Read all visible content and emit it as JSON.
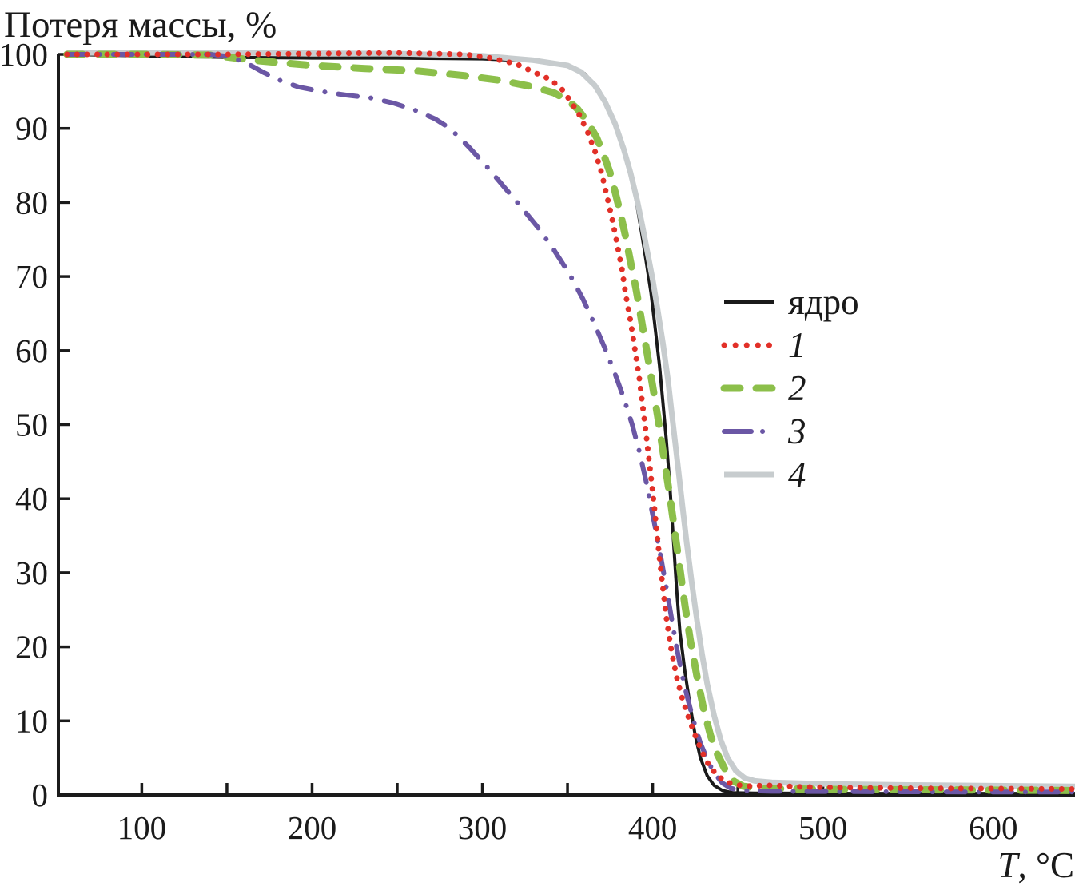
{
  "title": "Потеря массы, %",
  "x_axis_label": {
    "symbol": "T",
    "unit": ", °C"
  },
  "chart_data": {
    "type": "line",
    "title": "Потеря массы, %",
    "xlabel": "T, °C",
    "ylabel": "Потеря массы, %",
    "xlim": [
      51,
      648
    ],
    "ylim": [
      0,
      100
    ],
    "grid": false,
    "axis_color": "#1b1b1b",
    "legend_position": "inside-right-middle",
    "x_major_ticks": [
      100,
      200,
      300,
      400,
      500,
      600
    ],
    "x_minor_ticks": [
      150,
      250,
      350,
      450,
      550
    ],
    "y_ticks": [
      0,
      10,
      20,
      30,
      40,
      50,
      60,
      70,
      80,
      90,
      100
    ],
    "series": [
      {
        "name": "ядро",
        "color": "#1a1a1a",
        "line_style": "solid",
        "line_width": 4,
        "points": [
          [
            56,
            100
          ],
          [
            100,
            99.8
          ],
          [
            150,
            99.6
          ],
          [
            200,
            99.5
          ],
          [
            250,
            99.5
          ],
          [
            300,
            99.4
          ],
          [
            330,
            99.1
          ],
          [
            350,
            98.4
          ],
          [
            360,
            97.4
          ],
          [
            368,
            95.4
          ],
          [
            375,
            92.4
          ],
          [
            381,
            88.8
          ],
          [
            386,
            84.8
          ],
          [
            390,
            80.6
          ],
          [
            393,
            76.6
          ],
          [
            396,
            72.3
          ],
          [
            399,
            67.8
          ],
          [
            401,
            64
          ],
          [
            404,
            58
          ],
          [
            406,
            53
          ],
          [
            408,
            48
          ],
          [
            410,
            42
          ],
          [
            412,
            35
          ],
          [
            414,
            28
          ],
          [
            416,
            22
          ],
          [
            419,
            16.5
          ],
          [
            422,
            12
          ],
          [
            425,
            8
          ],
          [
            428,
            5
          ],
          [
            432,
            2.6
          ],
          [
            436,
            1.3
          ],
          [
            441,
            0.6
          ],
          [
            447,
            0.3
          ],
          [
            460,
            0.25
          ],
          [
            520,
            0.2
          ],
          [
            600,
            0.2
          ],
          [
            648,
            0.2
          ]
        ]
      },
      {
        "name": "1",
        "color": "#e23028",
        "line_style": "dotted",
        "line_width": 7,
        "points": [
          [
            56,
            100
          ],
          [
            100,
            100
          ],
          [
            150,
            100
          ],
          [
            200,
            100.1
          ],
          [
            250,
            100.2
          ],
          [
            290,
            100
          ],
          [
            305,
            99.5
          ],
          [
            320,
            98.7
          ],
          [
            332,
            97.4
          ],
          [
            340,
            96.6
          ],
          [
            347,
            95.2
          ],
          [
            352,
            93.6
          ],
          [
            357,
            91.8
          ],
          [
            362,
            89.4
          ],
          [
            366,
            87
          ],
          [
            370,
            84
          ],
          [
            373,
            81
          ],
          [
            376,
            78
          ],
          [
            379,
            74.5
          ],
          [
            382,
            71
          ],
          [
            384,
            67.8
          ],
          [
            387,
            64
          ],
          [
            389,
            61
          ],
          [
            392,
            56.5
          ],
          [
            394,
            52.8
          ],
          [
            396,
            49
          ],
          [
            398,
            45
          ],
          [
            400,
            41
          ],
          [
            402,
            36.5
          ],
          [
            404,
            32
          ],
          [
            406,
            28
          ],
          [
            408,
            24
          ],
          [
            411,
            19.5
          ],
          [
            414,
            16
          ],
          [
            417,
            13.3
          ],
          [
            421,
            10.5
          ],
          [
            425,
            8
          ],
          [
            429,
            5.8
          ],
          [
            433,
            4
          ],
          [
            438,
            2.6
          ],
          [
            443,
            1.8
          ],
          [
            448,
            1.4
          ],
          [
            456,
            1.2
          ],
          [
            470,
            1.3
          ],
          [
            485,
            1.1
          ],
          [
            510,
            1
          ],
          [
            560,
            0.9
          ],
          [
            610,
            0.85
          ],
          [
            648,
            0.8
          ]
        ]
      },
      {
        "name": "2",
        "color": "#8cbf4a",
        "line_style": "dashed",
        "line_width": 9,
        "points": [
          [
            56,
            100
          ],
          [
            100,
            100
          ],
          [
            140,
            99.9
          ],
          [
            155,
            99.5
          ],
          [
            170,
            99.1
          ],
          [
            200,
            98.5
          ],
          [
            230,
            98.1
          ],
          [
            260,
            97.8
          ],
          [
            290,
            97.1
          ],
          [
            310,
            96.5
          ],
          [
            330,
            95.6
          ],
          [
            342,
            94.8
          ],
          [
            350,
            93.8
          ],
          [
            356,
            92.6
          ],
          [
            362,
            90.8
          ],
          [
            367,
            88.8
          ],
          [
            371,
            86.6
          ],
          [
            375,
            84
          ],
          [
            378,
            81.4
          ],
          [
            381,
            78.6
          ],
          [
            384,
            75.5
          ],
          [
            387,
            72
          ],
          [
            390,
            68.6
          ],
          [
            392,
            66
          ],
          [
            395,
            62
          ],
          [
            398,
            58
          ],
          [
            400,
            55.2
          ],
          [
            403,
            51
          ],
          [
            405,
            48
          ],
          [
            408,
            43.5
          ],
          [
            410,
            40.5
          ],
          [
            413,
            35.5
          ],
          [
            416,
            30.5
          ],
          [
            419,
            25.5
          ],
          [
            422,
            21
          ],
          [
            426,
            16
          ],
          [
            430,
            11.5
          ],
          [
            434,
            8
          ],
          [
            438,
            5.5
          ],
          [
            443,
            3.2
          ],
          [
            448,
            1.8
          ],
          [
            453,
            1.2
          ],
          [
            462,
            0.9
          ],
          [
            500,
            0.75
          ],
          [
            560,
            0.7
          ],
          [
            610,
            0.65
          ],
          [
            648,
            0.6
          ]
        ]
      },
      {
        "name": "3",
        "color": "#6b57a5",
        "line_style": "dashdot",
        "line_width": 6,
        "points": [
          [
            56,
            100
          ],
          [
            100,
            100
          ],
          [
            140,
            100
          ],
          [
            148,
            99.8
          ],
          [
            156,
            99.3
          ],
          [
            164,
            98.5
          ],
          [
            172,
            97.5
          ],
          [
            182,
            96.4
          ],
          [
            192,
            95.6
          ],
          [
            205,
            95
          ],
          [
            220,
            94.5
          ],
          [
            235,
            94.1
          ],
          [
            248,
            93.4
          ],
          [
            260,
            92.5
          ],
          [
            272,
            91.3
          ],
          [
            281,
            90
          ],
          [
            292,
            87.5
          ],
          [
            302,
            85
          ],
          [
            312,
            82.3
          ],
          [
            322,
            79.6
          ],
          [
            332,
            76.8
          ],
          [
            342,
            73.6
          ],
          [
            351,
            70.4
          ],
          [
            359,
            67
          ],
          [
            366,
            63.5
          ],
          [
            372,
            60.3
          ],
          [
            378,
            56.8
          ],
          [
            383,
            53.6
          ],
          [
            388,
            50
          ],
          [
            392,
            46.5
          ],
          [
            396,
            42.5
          ],
          [
            399,
            39
          ],
          [
            402,
            35.5
          ],
          [
            405,
            31.8
          ],
          [
            408,
            28
          ],
          [
            411,
            24
          ],
          [
            414,
            20
          ],
          [
            417,
            16.5
          ],
          [
            420,
            13.5
          ],
          [
            424,
            10
          ],
          [
            428,
            7
          ],
          [
            432,
            4.8
          ],
          [
            436,
            3
          ],
          [
            441,
            1.6
          ],
          [
            446,
            0.9
          ],
          [
            452,
            0.6
          ],
          [
            470,
            0.5
          ],
          [
            520,
            0.45
          ],
          [
            600,
            0.4
          ],
          [
            648,
            0.4
          ]
        ]
      },
      {
        "name": "4",
        "color": "#c7ccce",
        "line_style": "solid",
        "line_width": 7,
        "points": [
          [
            56,
            100.2
          ],
          [
            150,
            100.2
          ],
          [
            250,
            100.1
          ],
          [
            300,
            99.8
          ],
          [
            330,
            99.2
          ],
          [
            350,
            98.5
          ],
          [
            358,
            97.6
          ],
          [
            366,
            95.8
          ],
          [
            372,
            93.6
          ],
          [
            378,
            90.6
          ],
          [
            383,
            87.2
          ],
          [
            387,
            84
          ],
          [
            391,
            80.2
          ],
          [
            394,
            76.8
          ],
          [
            397,
            73.2
          ],
          [
            400,
            69.6
          ],
          [
            403,
            65.4
          ],
          [
            406,
            61
          ],
          [
            409,
            56
          ],
          [
            411,
            52
          ],
          [
            413,
            48
          ],
          [
            415,
            44
          ],
          [
            418,
            38
          ],
          [
            420,
            34
          ],
          [
            423,
            28.6
          ],
          [
            426,
            23.6
          ],
          [
            429,
            19
          ],
          [
            432,
            15
          ],
          [
            436,
            10.8
          ],
          [
            440,
            7.4
          ],
          [
            444,
            5
          ],
          [
            449,
            3.2
          ],
          [
            454,
            2.3
          ],
          [
            460,
            1.9
          ],
          [
            470,
            1.7
          ],
          [
            500,
            1.5
          ],
          [
            550,
            1.35
          ],
          [
            600,
            1.25
          ],
          [
            648,
            1.15
          ]
        ]
      }
    ]
  }
}
